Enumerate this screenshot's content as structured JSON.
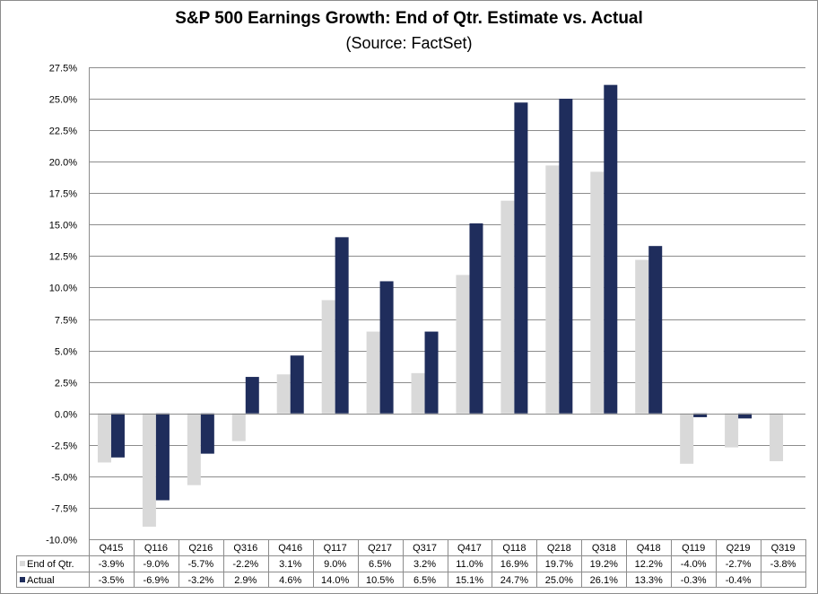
{
  "chart_data": {
    "type": "bar",
    "title": "S&P 500 Earnings Growth: End of Qtr. Estimate vs. Actual",
    "subtitle": "(Source: FactSet)",
    "categories": [
      "Q415",
      "Q116",
      "Q216",
      "Q316",
      "Q416",
      "Q117",
      "Q217",
      "Q317",
      "Q417",
      "Q118",
      "Q218",
      "Q318",
      "Q418",
      "Q119",
      "Q219",
      "Q319"
    ],
    "series": [
      {
        "name": "End of Qtr.",
        "color": "#d9d9d9",
        "values": [
          -3.9,
          -9.0,
          -5.7,
          -2.2,
          3.1,
          9.0,
          6.5,
          3.2,
          11.0,
          16.9,
          19.7,
          19.2,
          12.2,
          -4.0,
          -2.7,
          -3.8
        ],
        "labels": [
          "-3.9%",
          "-9.0%",
          "-5.7%",
          "-2.2%",
          "3.1%",
          "9.0%",
          "6.5%",
          "3.2%",
          "11.0%",
          "16.9%",
          "19.7%",
          "19.2%",
          "12.2%",
          "-4.0%",
          "-2.7%",
          "-3.8%"
        ]
      },
      {
        "name": "Actual",
        "color": "#1f2d5c",
        "values": [
          -3.5,
          -6.9,
          -3.2,
          2.9,
          4.6,
          14.0,
          10.5,
          6.5,
          15.1,
          24.7,
          25.0,
          26.1,
          13.3,
          -0.3,
          -0.4,
          null
        ],
        "labels": [
          "-3.5%",
          "-6.9%",
          "-3.2%",
          "2.9%",
          "4.6%",
          "14.0%",
          "10.5%",
          "6.5%",
          "15.1%",
          "24.7%",
          "25.0%",
          "26.1%",
          "13.3%",
          "-0.3%",
          "-0.4%",
          ""
        ]
      }
    ],
    "yticks": [
      "27.5%",
      "25.0%",
      "22.5%",
      "20.0%",
      "17.5%",
      "15.0%",
      "12.5%",
      "10.0%",
      "7.5%",
      "5.0%",
      "2.5%",
      "0.0%",
      "-2.5%",
      "-5.0%",
      "-7.5%",
      "-10.0%"
    ],
    "ylim": [
      -10,
      27.5
    ],
    "ystep": 2.5,
    "grid": true,
    "legend": "data-table"
  }
}
